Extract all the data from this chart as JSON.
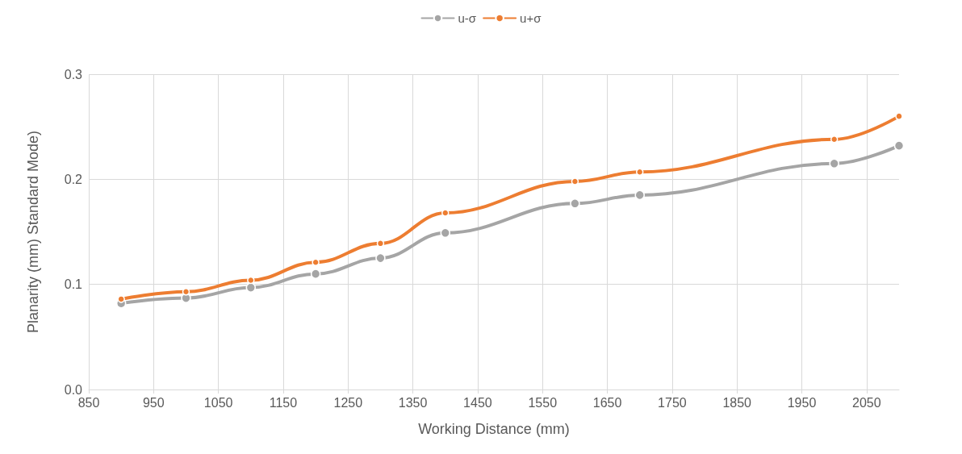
{
  "chart_data": {
    "type": "line",
    "xlabel": "Working Distance (mm)",
    "ylabel": "Planarity (mm) Standard Mode)",
    "x": [
      900,
      1000,
      1100,
      1200,
      1300,
      1400,
      1600,
      1700,
      2000,
      2100
    ],
    "series": [
      {
        "name": "u-σ",
        "color": "#a5a5a5",
        "values": [
          0.082,
          0.087,
          0.097,
          0.11,
          0.125,
          0.149,
          0.177,
          0.185,
          0.215,
          0.232
        ]
      },
      {
        "name": "u+σ",
        "color": "#ed7d31",
        "values": [
          0.086,
          0.093,
          0.104,
          0.121,
          0.139,
          0.168,
          0.198,
          0.207,
          0.238,
          0.26
        ]
      }
    ],
    "xlim": [
      850,
      2100
    ],
    "xticks": [
      850,
      950,
      1050,
      1150,
      1250,
      1350,
      1450,
      1550,
      1650,
      1750,
      1850,
      1950,
      2050
    ],
    "ylim": [
      0,
      0.3
    ],
    "yticks": [
      {
        "value": 0,
        "label": "0.0"
      },
      0.1,
      0.2,
      0.3
    ],
    "grid": true,
    "legend": "top",
    "marker": "circle",
    "line_style": "solid"
  }
}
